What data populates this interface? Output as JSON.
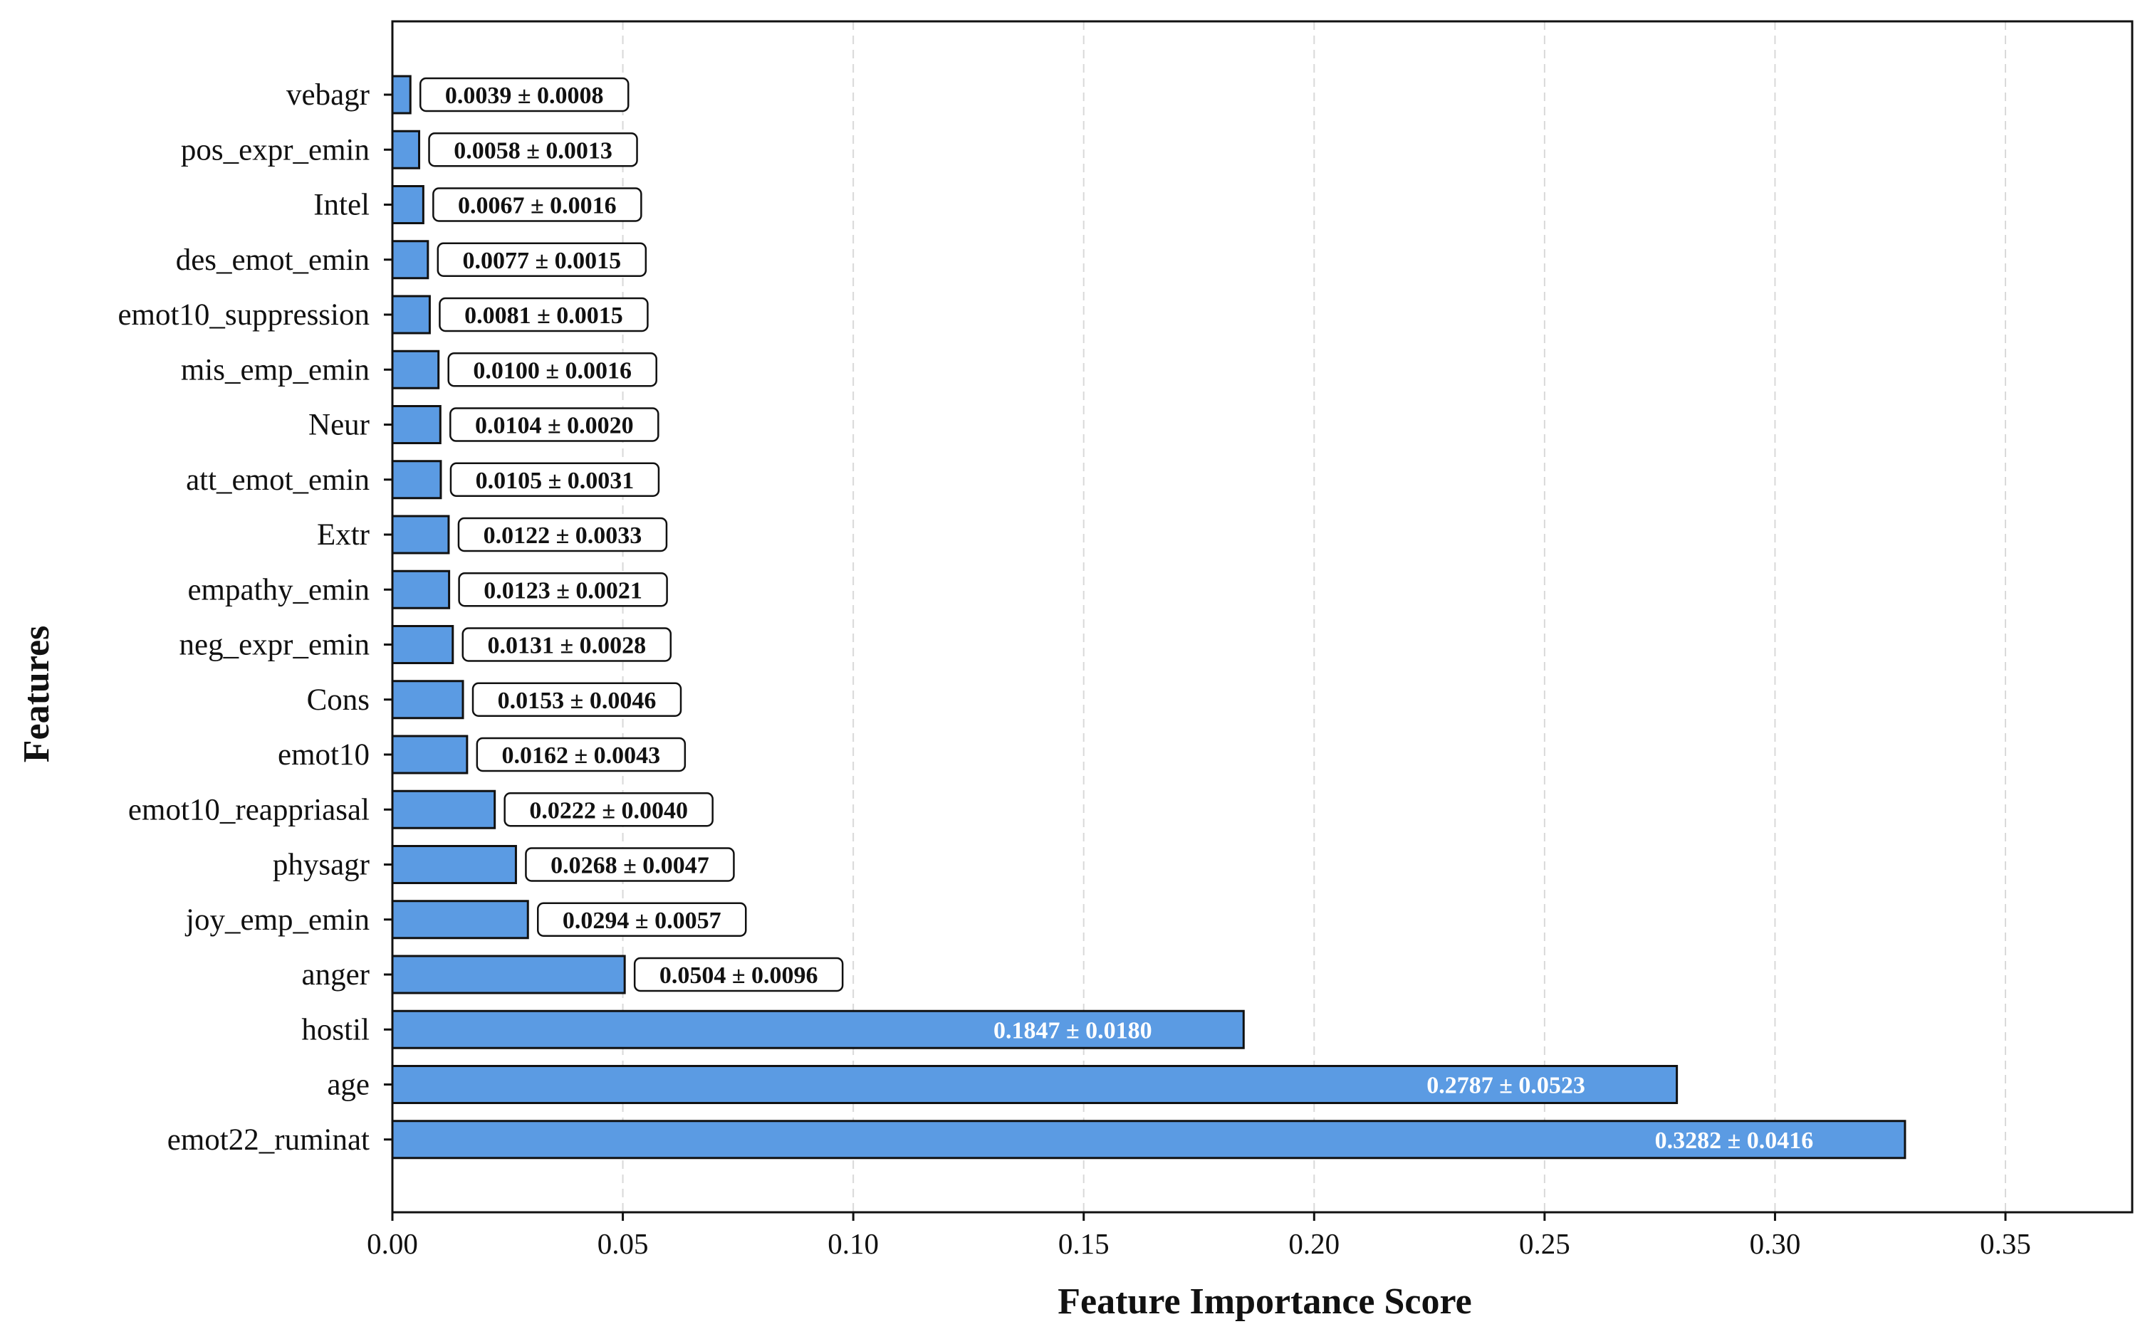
{
  "chart_data": {
    "type": "bar",
    "orientation": "horizontal",
    "xlabel": "Feature Importance Score",
    "ylabel": "Features",
    "xlim": [
      0,
      0.3775
    ],
    "xticks": [
      0.0,
      0.05,
      0.1,
      0.15,
      0.2,
      0.25,
      0.3,
      0.35
    ],
    "xtick_labels": [
      "0.00",
      "0.05",
      "0.10",
      "0.15",
      "0.20",
      "0.25",
      "0.30",
      "0.35"
    ],
    "grid": "vertical dashed",
    "bar_color": "#5b9be3",
    "bar_edge_color": "#111111",
    "categories": [
      "vebagr",
      "pos_expr_emin",
      "Intel",
      "des_emot_emin",
      "emot10_suppression",
      "mis_emp_emin",
      "Neur",
      "att_emot_emin",
      "Extr",
      "empathy_emin",
      "neg_expr_emin",
      "Cons",
      "emot10",
      "emot10_reappriasal",
      "physagr",
      "joy_emp_emin",
      "anger",
      "hostil",
      "age",
      "emot22_ruminat"
    ],
    "values": [
      0.0039,
      0.0058,
      0.0067,
      0.0077,
      0.0081,
      0.01,
      0.0104,
      0.0105,
      0.0122,
      0.0123,
      0.0131,
      0.0153,
      0.0162,
      0.0222,
      0.0268,
      0.0294,
      0.0504,
      0.1847,
      0.2787,
      0.3282
    ],
    "errors": [
      0.0008,
      0.0013,
      0.0016,
      0.0015,
      0.0015,
      0.0016,
      0.002,
      0.0031,
      0.0033,
      0.0021,
      0.0028,
      0.0046,
      0.0043,
      0.004,
      0.0047,
      0.0057,
      0.0096,
      0.018,
      0.0523,
      0.0416
    ],
    "value_labels": [
      "0.0039 ± 0.0008",
      "0.0058 ± 0.0013",
      "0.0067 ± 0.0016",
      "0.0077 ± 0.0015",
      "0.0081 ± 0.0015",
      "0.0100 ± 0.0016",
      "0.0104 ± 0.0020",
      "0.0105 ± 0.0031",
      "0.0122 ± 0.0033",
      "0.0123 ± 0.0021",
      "0.0131 ± 0.0028",
      "0.0153 ± 0.0046",
      "0.0162 ± 0.0043",
      "0.0222 ± 0.0040",
      "0.0268 ± 0.0047",
      "0.0294 ± 0.0057",
      "0.0504 ± 0.0096",
      "0.1847 ± 0.0180",
      "0.2787 ± 0.0523",
      "0.3282 ± 0.0416"
    ]
  }
}
